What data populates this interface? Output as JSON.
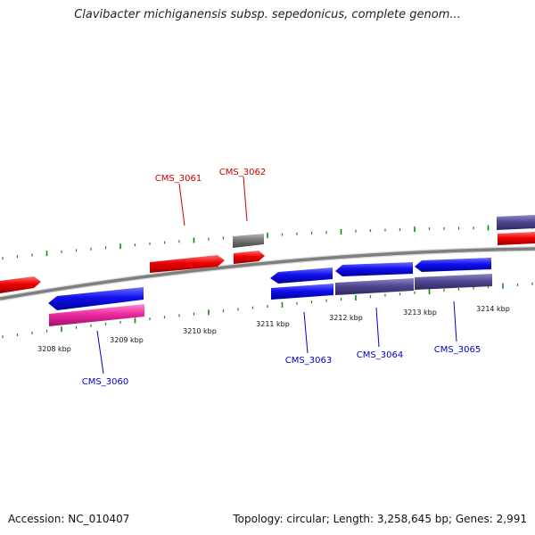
{
  "title": "Clavibacter michiganensis subsp. sepedonicus, complete genom...",
  "accession": "Accession: NC_010407",
  "summary": "Topology: circular; Length: 3,258,645 bp; Genes: 2,991",
  "scale_ticks": [
    "3208 kbp",
    "3209 kbp",
    "3210 kbp",
    "3211 kbp",
    "3212 kbp",
    "3213 kbp",
    "3214 kbp"
  ],
  "genes_forward": [
    "CMS_3061",
    "CMS_3062"
  ],
  "genes_reverse": [
    "CMS_3060",
    "CMS_3063",
    "CMS_3064",
    "CMS_3065"
  ],
  "colors": {
    "forward_label": "#cc0000",
    "reverse_label": "#0000cc",
    "forward_gene": "#e60000",
    "reverse_gene": "#1414e6",
    "cds_magenta": "#e6299c",
    "cds_purple": "#4f4690",
    "cds_gray": "#6e6e6e",
    "backbone": "#8a8a8a",
    "tick_green": "#118811"
  }
}
